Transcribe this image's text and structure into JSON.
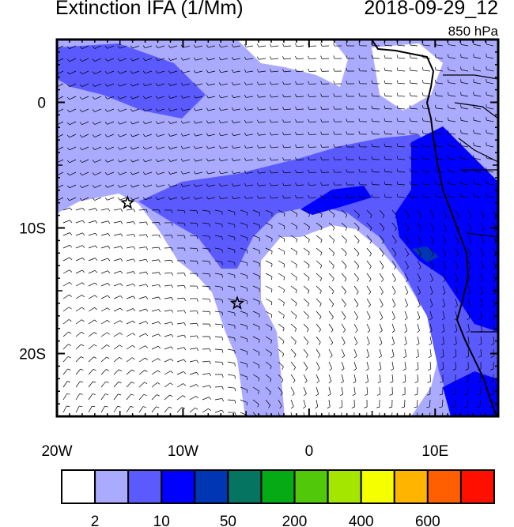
{
  "header": {
    "title": "Extinction IFA (1/Mm)",
    "datetime": "2018-09-29_12",
    "level": "850 hPa"
  },
  "map": {
    "lon_range": [
      -20,
      15
    ],
    "lat_range": [
      -25,
      5
    ],
    "x_ticks": [
      {
        "value": -20,
        "label": "20W"
      },
      {
        "value": -10,
        "label": "10W"
      },
      {
        "value": 0,
        "label": "0"
      },
      {
        "value": 10,
        "label": "10E"
      }
    ],
    "y_ticks": [
      {
        "value": 0,
        "label": "0"
      },
      {
        "value": -10,
        "label": "10S"
      },
      {
        "value": -20,
        "label": "20S"
      }
    ],
    "markers": [
      {
        "type": "star",
        "lon": -14.4,
        "lat": -8.0
      },
      {
        "type": "star",
        "lon": -5.7,
        "lat": -16.0
      }
    ],
    "overlay": "wind-barbs"
  },
  "colorbar": {
    "colors": [
      "#ffffff",
      "#aaaaff",
      "#5a5aff",
      "#0000ff",
      "#0036b4",
      "#057562",
      "#05aa14",
      "#52c80a",
      "#a5e600",
      "#f5ff00",
      "#ffb400",
      "#ff5f00",
      "#ff0f00"
    ],
    "labels": [
      {
        "boundary": 1,
        "label": "2"
      },
      {
        "boundary": 3,
        "label": "10"
      },
      {
        "boundary": 5,
        "label": "50"
      },
      {
        "boundary": 7,
        "label": "200"
      },
      {
        "boundary": 9,
        "label": "400"
      },
      {
        "boundary": 11,
        "label": "600"
      }
    ]
  }
}
